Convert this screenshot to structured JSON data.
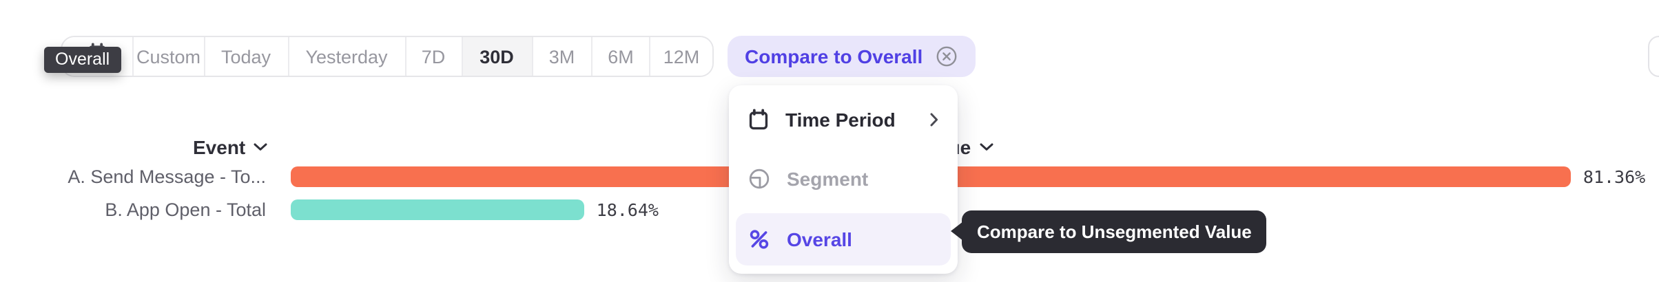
{
  "toolbar": {
    "ranges": [
      {
        "label": "Custom",
        "selected": false
      },
      {
        "label": "Today",
        "selected": false
      },
      {
        "label": "Yesterday",
        "selected": false
      },
      {
        "label": "7D",
        "selected": false
      },
      {
        "label": "30D",
        "selected": true
      },
      {
        "label": "3M",
        "selected": false
      },
      {
        "label": "6M",
        "selected": false
      },
      {
        "label": "12M",
        "selected": false
      }
    ],
    "compare_button": {
      "label": "Compare to Overall",
      "icon": "close-circle"
    }
  },
  "overall_tooltip": {
    "text": "Overall"
  },
  "compare_tooltip": {
    "text": "Compare to Unsegmented Value"
  },
  "table": {
    "headers": {
      "event": "Event",
      "value": "Value"
    }
  },
  "menu": {
    "items": [
      {
        "label": "Time Period",
        "icon": "calendar",
        "has_submenu": true,
        "state": "normal"
      },
      {
        "label": "Segment",
        "icon": "segment",
        "has_submenu": false,
        "state": "disabled"
      },
      {
        "label": "Overall",
        "icon": "percent",
        "has_submenu": false,
        "state": "selected"
      }
    ]
  },
  "chart_data": {
    "type": "bar",
    "orientation": "horizontal",
    "categories": [
      "A. Send Message - To...",
      "B. App Open - Total"
    ],
    "values": [
      81.36,
      18.64
    ],
    "value_labels": [
      "81.36%",
      "18.64%"
    ],
    "colors": [
      "#F8704F",
      "#7CE0CF"
    ],
    "xlim": [
      0,
      100
    ],
    "columns": [
      "Event",
      "Value"
    ],
    "grid": false,
    "legend": "none"
  },
  "colors": {
    "accent_purple": "#5646E5",
    "pill_bg": "#E9E6FB",
    "bar_orange": "#F8704F",
    "bar_teal": "#7CE0CF",
    "tooltip_dark": "#2B2B32",
    "selected_segment_bg": "#F4F4F5"
  }
}
